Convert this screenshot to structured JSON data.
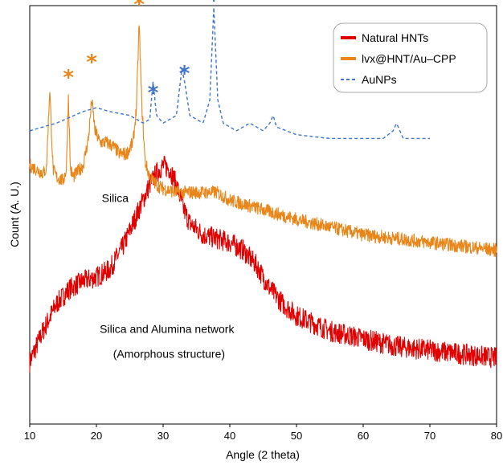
{
  "chart_data": {
    "type": "line",
    "xlabel": "Angle (2 theta)",
    "ylabel": "Count (A. U.)",
    "xlim": [
      10,
      80
    ],
    "xticks": [
      "10",
      "20",
      "30",
      "40",
      "50",
      "60",
      "70",
      "80"
    ],
    "yticks": false,
    "grid": false,
    "legend_position": "top-right",
    "series": [
      {
        "name": "Natural HNTs",
        "color": "#e00000",
        "style": "solid",
        "x": [
          10,
          12,
          14,
          16,
          18,
          20,
          22,
          24,
          26,
          28,
          29,
          30,
          31,
          32,
          33,
          34,
          36,
          38,
          40,
          42,
          44,
          46,
          48,
          50,
          55,
          60,
          65,
          70,
          75,
          80
        ],
        "y": [
          0.12,
          0.2,
          0.27,
          0.31,
          0.33,
          0.34,
          0.36,
          0.42,
          0.5,
          0.58,
          0.61,
          0.63,
          0.62,
          0.58,
          0.52,
          0.48,
          0.45,
          0.44,
          0.43,
          0.41,
          0.37,
          0.31,
          0.27,
          0.24,
          0.2,
          0.18,
          0.16,
          0.15,
          0.14,
          0.13
        ]
      },
      {
        "name": "lvx@HNT/Au–CPP",
        "color": "#e8861a",
        "style": "solid",
        "x": [
          10,
          11,
          12,
          12.5,
          13,
          13.5,
          14,
          15,
          15.5,
          15.8,
          16.1,
          16.5,
          17,
          18,
          18.8,
          19.3,
          19.8,
          20.5,
          21.5,
          22.5,
          23.5,
          24.5,
          25.5,
          26,
          26.4,
          26.8,
          27.3,
          28,
          29,
          30,
          32,
          35,
          38,
          40,
          42,
          44,
          46,
          48,
          50,
          55,
          60,
          65,
          70,
          75,
          80
        ],
        "y": [
          0.63,
          0.62,
          0.61,
          0.62,
          0.83,
          0.62,
          0.6,
          0.59,
          0.62,
          0.81,
          0.62,
          0.6,
          0.61,
          0.63,
          0.7,
          0.8,
          0.72,
          0.69,
          0.69,
          0.68,
          0.66,
          0.66,
          0.69,
          0.78,
          1.0,
          0.79,
          0.64,
          0.6,
          0.58,
          0.57,
          0.56,
          0.56,
          0.56,
          0.54,
          0.53,
          0.52,
          0.51,
          0.5,
          0.49,
          0.47,
          0.45,
          0.44,
          0.43,
          0.42,
          0.41
        ]
      },
      {
        "name": "AuNPs",
        "color": "#3f74c8",
        "style": "dashed",
        "x": [
          10,
          14,
          18,
          20,
          22,
          25,
          27,
          28,
          28.5,
          29,
          30,
          32,
          32.8,
          33.2,
          34,
          36,
          37,
          37.6,
          38.2,
          39,
          41,
          43,
          44,
          45,
          46,
          46.5,
          47,
          50,
          55,
          60,
          63,
          64.5,
          65,
          65.5,
          66,
          70
        ],
        "y": [
          0.72,
          0.74,
          0.77,
          0.78,
          0.77,
          0.76,
          0.74,
          0.75,
          0.85,
          0.76,
          0.74,
          0.76,
          0.88,
          0.85,
          0.76,
          0.74,
          0.8,
          1.04,
          0.8,
          0.74,
          0.72,
          0.74,
          0.73,
          0.72,
          0.74,
          0.76,
          0.73,
          0.71,
          0.7,
          0.7,
          0.7,
          0.72,
          0.74,
          0.72,
          0.7,
          0.7
        ]
      }
    ],
    "annotations": [
      {
        "text": "Silica",
        "x": 20.8,
        "y": 0.535
      },
      {
        "text": "Silica and Alumina network",
        "x": 20.5,
        "y": 0.195
      },
      {
        "text": "(Amorphous structure)",
        "x": 22.5,
        "y": 0.13
      }
    ],
    "markers": [
      {
        "text": "*",
        "x": 15.8,
        "y": 0.87,
        "color": "#e8861a"
      },
      {
        "text": "*",
        "x": 19.3,
        "y": 0.91,
        "color": "#e8861a"
      },
      {
        "text": "*",
        "x": 26.4,
        "y": 1.06,
        "color": "#e8861a"
      },
      {
        "text": "*",
        "x": 28.5,
        "y": 0.83,
        "color": "#3f74c8"
      },
      {
        "text": "*",
        "x": 33.2,
        "y": 0.88,
        "color": "#3f74c8"
      },
      {
        "text": "*",
        "x": 37.6,
        "y": 1.07,
        "color": "#3f74c8"
      }
    ]
  }
}
